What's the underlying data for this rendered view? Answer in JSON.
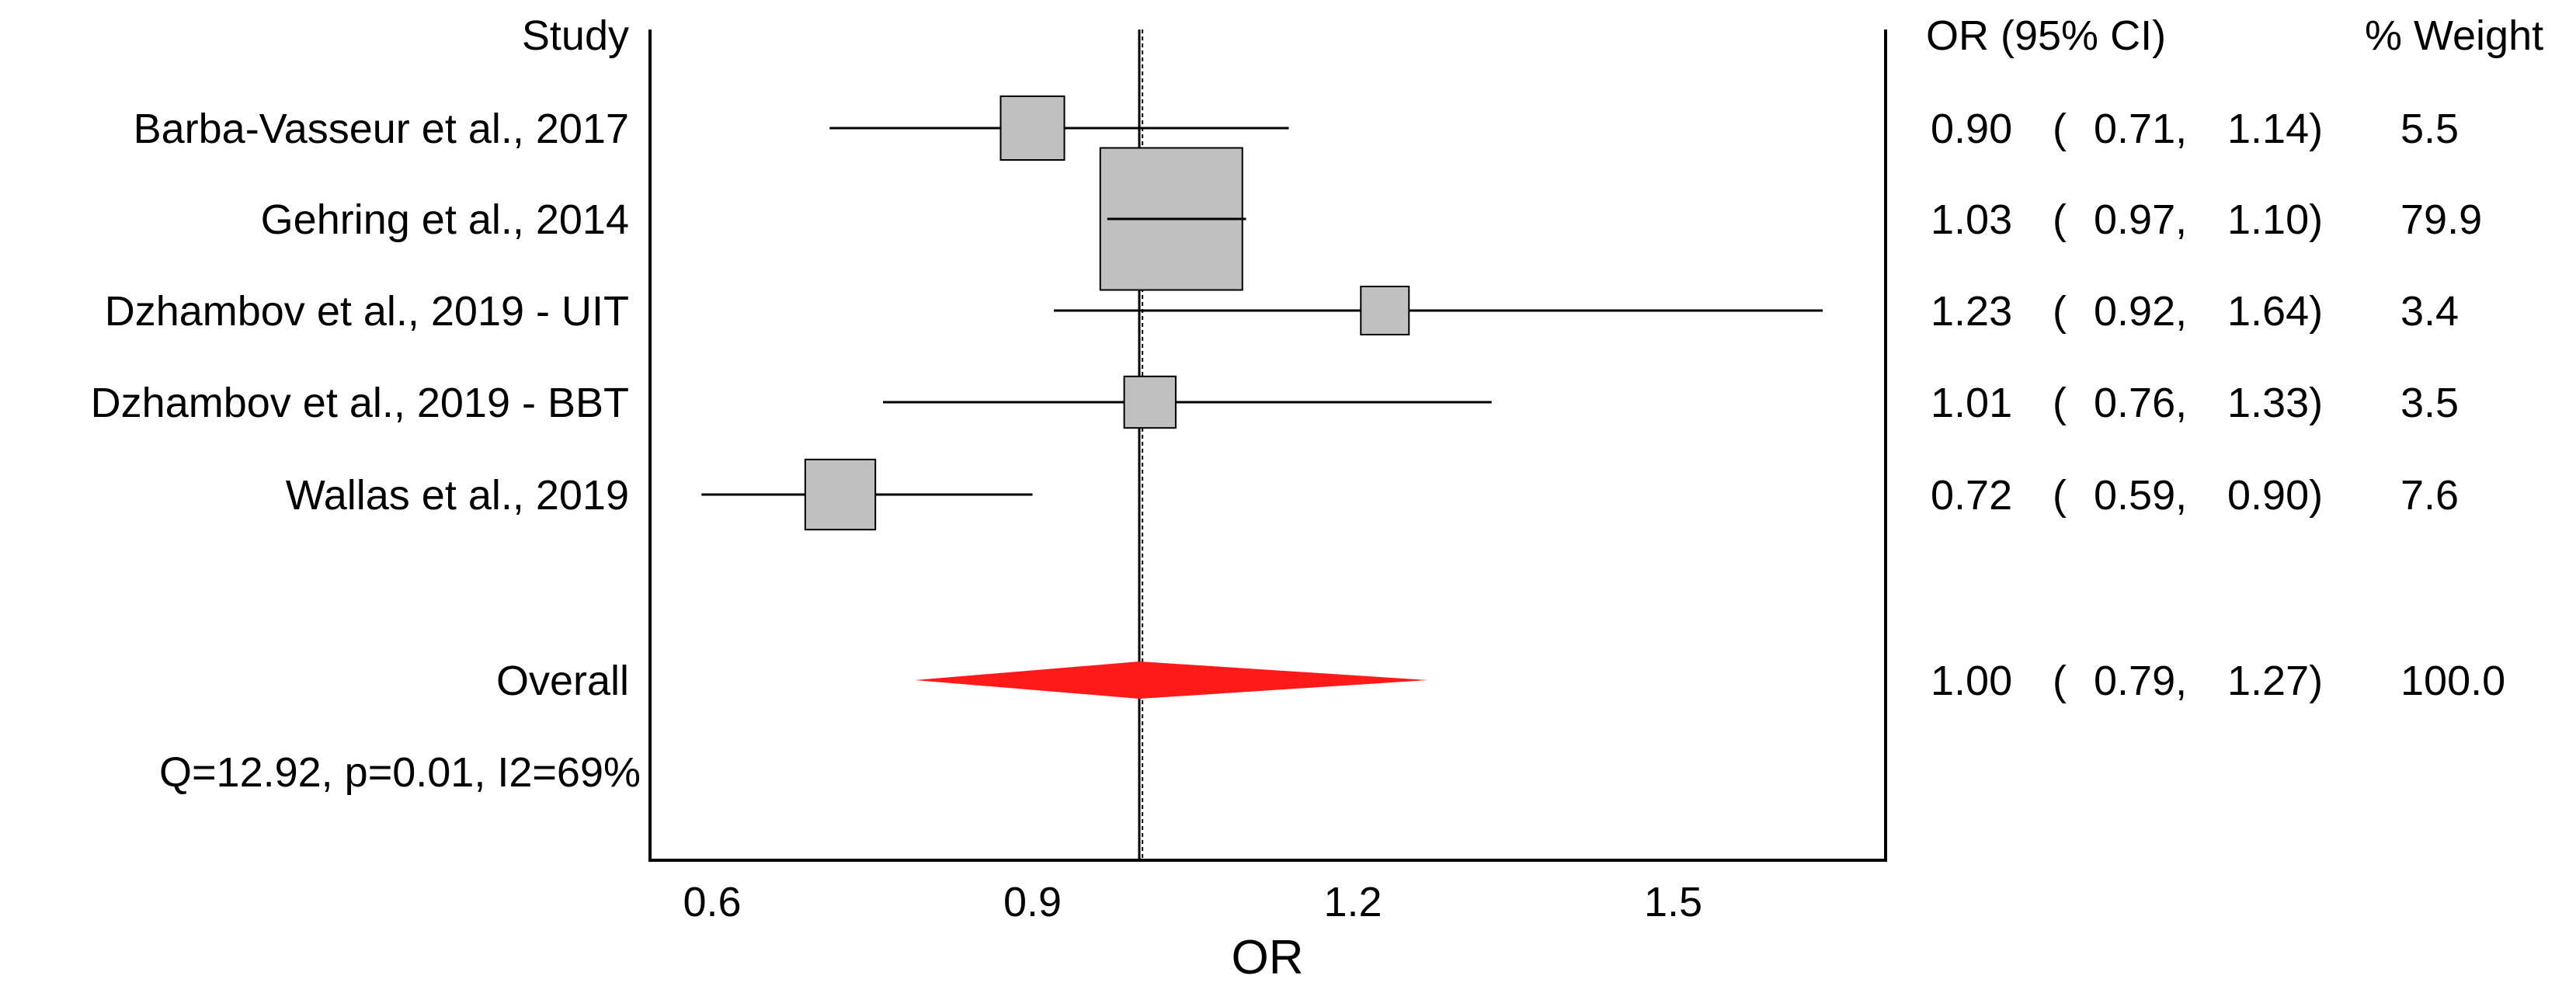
{
  "chart_data": {
    "type": "forest",
    "xlabel": "OR",
    "xlim": [
      0.55,
      1.7
    ],
    "xticks": [
      "0.6",
      "0.9",
      "1.2",
      "1.5"
    ],
    "reference_line": 1.0,
    "summary_line": 1.003,
    "headers": {
      "study": "Study",
      "estimate": "OR (95% CI)",
      "weight": "% Weight"
    },
    "studies": [
      {
        "label": "Barba-Vasseur et al., 2017",
        "or": 0.9,
        "lo": 0.71,
        "hi": 1.14,
        "or_text": "0.90",
        "lo_text": "0.71,",
        "hi_text": "1.14)",
        "weight": 5.5,
        "weight_text": "5.5"
      },
      {
        "label": "Gehring et al., 2014",
        "or": 1.03,
        "lo": 0.97,
        "hi": 1.1,
        "or_text": "1.03",
        "lo_text": "0.97,",
        "hi_text": "1.10)",
        "weight": 79.9,
        "weight_text": "79.9"
      },
      {
        "label": "Dzhambov et al., 2019 - UIT",
        "or": 1.23,
        "lo": 0.92,
        "hi": 1.64,
        "or_text": "1.23",
        "lo_text": "0.92,",
        "hi_text": "1.64)",
        "weight": 3.4,
        "weight_text": "3.4"
      },
      {
        "label": "Dzhambov et al., 2019 - BBT",
        "or": 1.01,
        "lo": 0.76,
        "hi": 1.33,
        "or_text": "1.01",
        "lo_text": "0.76,",
        "hi_text": "1.33)",
        "weight": 3.5,
        "weight_text": "3.5"
      },
      {
        "label": "Wallas et al., 2019",
        "or": 0.72,
        "lo": 0.59,
        "hi": 0.9,
        "or_text": "0.72",
        "lo_text": "0.59,",
        "hi_text": "0.90)",
        "weight": 7.6,
        "weight_text": "7.6"
      }
    ],
    "overall": {
      "label": "Overall",
      "or": 1.0,
      "lo": 0.79,
      "hi": 1.27,
      "or_text": "1.00",
      "lo_text": "0.79,",
      "hi_text": "1.27)",
      "weight": 100.0,
      "weight_text": "100.0"
    },
    "heterogeneity": "Q=12.92, p=0.01, I2=69%",
    "open_paren": "(",
    "colors": {
      "box_fill": "#c0c0c0",
      "box_stroke": "#000000",
      "diamond": "#ff1a1a",
      "line": "#000000"
    }
  }
}
